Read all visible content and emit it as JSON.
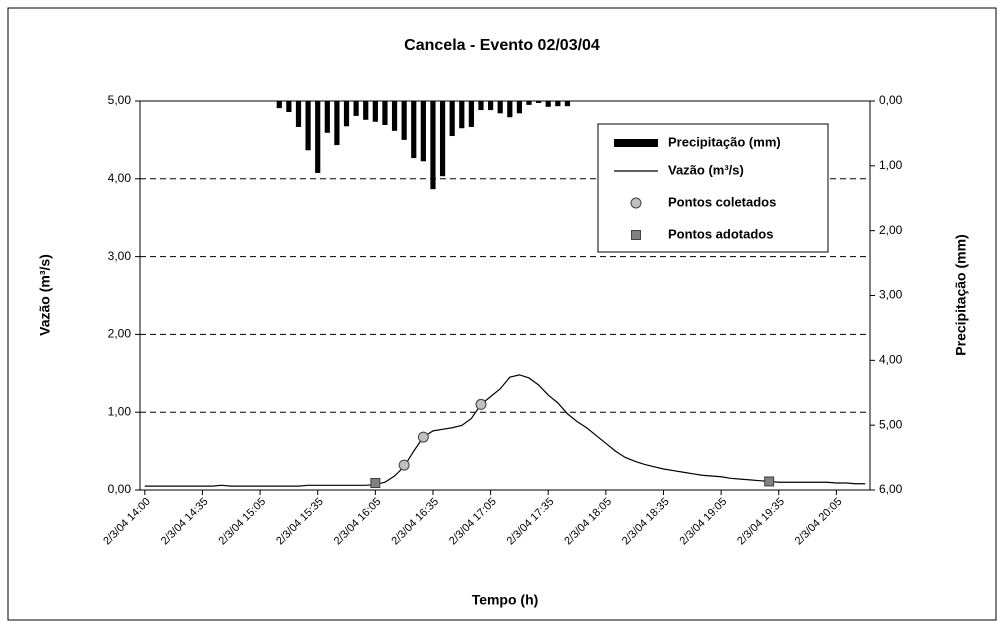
{
  "chart_data": {
    "type": "combo",
    "title": "Cancela - Evento 02/03/04",
    "x_label": "Tempo (h)",
    "y_label": "Vazão (m³/s)",
    "y2_label": "Precipitação (mm)",
    "categories": [
      "2/3/04 14:00",
      null,
      null,
      null,
      null,
      null,
      "2/3/04 14:35",
      null,
      null,
      null,
      null,
      null,
      "2/3/04 15:05",
      null,
      null,
      null,
      null,
      null,
      "2/3/04 15:35",
      null,
      null,
      null,
      null,
      null,
      "2/3/04 16:05",
      null,
      null,
      null,
      null,
      null,
      "2/3/04 16:35",
      null,
      null,
      null,
      null,
      null,
      "2/3/04 17:05",
      null,
      null,
      null,
      null,
      null,
      "2/3/04 17:35",
      null,
      null,
      null,
      null,
      null,
      "2/3/04 18:05",
      null,
      null,
      null,
      null,
      null,
      "2/3/04 18:35",
      null,
      null,
      null,
      null,
      null,
      "2/3/04 19:05",
      null,
      null,
      null,
      null,
      null,
      "2/3/04 19:35",
      null,
      null,
      null,
      null,
      null,
      "2/3/04 20:05",
      null,
      null,
      null
    ],
    "series": [
      {
        "name": "Precipitação (mm)",
        "type": "bar",
        "axis": "y2",
        "color": "#000000",
        "values": [
          null,
          null,
          null,
          null,
          null,
          null,
          null,
          null,
          null,
          null,
          null,
          null,
          null,
          null,
          0.11,
          0.17,
          0.4,
          0.76,
          1.11,
          0.49,
          0.68,
          0.39,
          0.23,
          0.29,
          0.32,
          0.37,
          0.46,
          0.6,
          0.88,
          0.93,
          1.36,
          1.16,
          0.54,
          0.42,
          0.4,
          0.14,
          0.14,
          0.19,
          0.25,
          0.19,
          0.06,
          0.03,
          0.09,
          0.08,
          0.08,
          null,
          null,
          null,
          null,
          null,
          null,
          null,
          null,
          null,
          null,
          null,
          null,
          null,
          null,
          null,
          null,
          null,
          null,
          null,
          null,
          null,
          null,
          null,
          null,
          null,
          null,
          null,
          null,
          null,
          null,
          null
        ]
      },
      {
        "name": "Vazão (m³/s)",
        "type": "line",
        "color": "#000000",
        "values": [
          0.05,
          0.05,
          0.05,
          0.05,
          0.05,
          0.05,
          0.05,
          0.05,
          0.06,
          0.05,
          0.05,
          0.05,
          0.05,
          0.05,
          0.05,
          0.05,
          0.05,
          0.06,
          0.06,
          0.06,
          0.06,
          0.06,
          0.06,
          0.06,
          0.07,
          0.1,
          0.18,
          0.3,
          0.5,
          0.68,
          0.76,
          0.78,
          0.8,
          0.83,
          0.92,
          1.1,
          1.2,
          1.3,
          1.45,
          1.48,
          1.44,
          1.35,
          1.22,
          1.12,
          0.98,
          0.88,
          0.8,
          0.7,
          0.6,
          0.5,
          0.42,
          0.37,
          0.33,
          0.3,
          0.27,
          0.25,
          0.23,
          0.21,
          0.19,
          0.18,
          0.17,
          0.15,
          0.14,
          0.13,
          0.12,
          0.11,
          0.1,
          0.1,
          0.1,
          0.1,
          0.1,
          0.1,
          0.09,
          0.09,
          0.08,
          0.08
        ]
      },
      {
        "name": "Pontos coletados",
        "type": "scatter",
        "marker": "circle",
        "color": "#c0c0c0",
        "values": [
          null,
          null,
          null,
          null,
          null,
          null,
          null,
          null,
          null,
          null,
          null,
          null,
          null,
          null,
          null,
          null,
          null,
          null,
          null,
          null,
          null,
          null,
          null,
          null,
          null,
          null,
          null,
          0.32,
          null,
          0.68,
          null,
          null,
          null,
          null,
          null,
          1.1,
          null,
          null,
          null,
          null,
          null,
          null,
          null,
          null,
          null,
          null,
          null,
          null,
          null,
          null,
          null,
          null,
          null,
          null,
          null,
          null,
          null,
          null,
          null,
          null,
          null,
          null,
          null,
          null,
          null,
          null,
          null,
          null,
          null,
          null,
          null,
          null,
          null,
          null,
          null,
          null
        ]
      },
      {
        "name": "Pontos adotados",
        "type": "scatter",
        "marker": "square",
        "color": "#808080",
        "values": [
          null,
          null,
          null,
          null,
          null,
          null,
          null,
          null,
          null,
          null,
          null,
          null,
          null,
          null,
          null,
          null,
          null,
          null,
          null,
          null,
          null,
          null,
          null,
          null,
          0.09,
          null,
          null,
          null,
          null,
          null,
          null,
          null,
          null,
          null,
          null,
          null,
          null,
          null,
          null,
          null,
          null,
          null,
          null,
          null,
          null,
          null,
          null,
          null,
          null,
          null,
          null,
          null,
          null,
          null,
          null,
          null,
          null,
          null,
          null,
          null,
          null,
          null,
          null,
          null,
          null,
          0.11,
          null,
          null,
          null,
          null,
          null,
          null,
          null,
          null,
          null,
          null
        ]
      }
    ],
    "ylim": [
      0,
      5
    ],
    "yticks": [
      {
        "value": 0,
        "label": "0,00"
      },
      {
        "value": 1,
        "label": "1,00"
      },
      {
        "value": 2,
        "label": "2,00"
      },
      {
        "value": 3,
        "label": "3,00"
      },
      {
        "value": 4,
        "label": "4,00"
      },
      {
        "value": 5,
        "label": "5,00"
      }
    ],
    "y2lim": [
      0,
      6
    ],
    "y2_reversed": true,
    "y2ticks": [
      {
        "value": 0,
        "label": "0,00"
      },
      {
        "value": 1,
        "label": "1,00"
      },
      {
        "value": 2,
        "label": "2,00"
      },
      {
        "value": 3,
        "label": "3,00"
      },
      {
        "value": 4,
        "label": "4,00"
      },
      {
        "value": 5,
        "label": "5,00"
      },
      {
        "value": 6,
        "label": "6,00"
      }
    ],
    "grid": true,
    "legend": "upper right"
  }
}
